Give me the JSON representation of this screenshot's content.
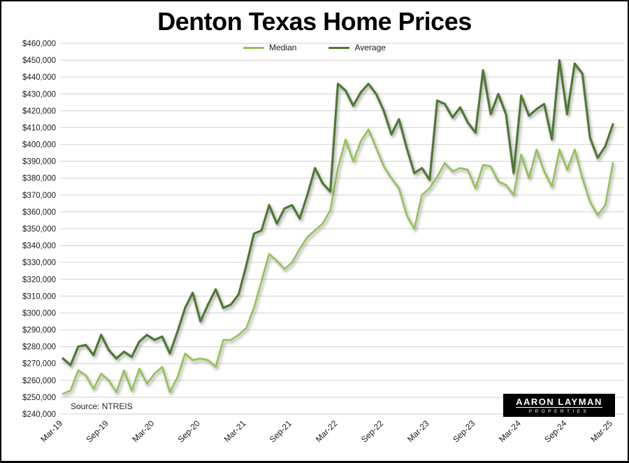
{
  "title": "Denton Texas Home Prices",
  "legend": {
    "items": [
      {
        "label": "Median",
        "color": "#93c353"
      },
      {
        "label": "Average",
        "color": "#4e7a30"
      }
    ]
  },
  "source_note": "Source: NTREIS",
  "logo": {
    "line1": "AARON LAYMAN",
    "line2": "PROPERTIES"
  },
  "colors": {
    "median_line": "#93c353",
    "average_line": "#4e7a30",
    "gridline": "#d9d9d9",
    "axis_text": "#1a1a1a"
  },
  "chart_data": {
    "type": "line",
    "title": "Denton Texas Home Prices",
    "x_frequency": "monthly",
    "x_start": "Mar-19",
    "x_end": "Mar-25",
    "n_points": 73,
    "x_ticks": [
      {
        "index": 0,
        "label": "Mar-19"
      },
      {
        "index": 6,
        "label": "Sep-19"
      },
      {
        "index": 12,
        "label": "Mar-20"
      },
      {
        "index": 18,
        "label": "Sep-20"
      },
      {
        "index": 24,
        "label": "Mar-21"
      },
      {
        "index": 30,
        "label": "Sep-21"
      },
      {
        "index": 36,
        "label": "Mar-22"
      },
      {
        "index": 42,
        "label": "Sep-22"
      },
      {
        "index": 48,
        "label": "Mar-23"
      },
      {
        "index": 54,
        "label": "Sep-23"
      },
      {
        "index": 60,
        "label": "Mar-24"
      },
      {
        "index": 66,
        "label": "Sep-24"
      },
      {
        "index": 72,
        "label": "Mar-25"
      }
    ],
    "ylim": [
      240000,
      460000
    ],
    "y_tick_step": 10000,
    "grid": true,
    "legend_position": "top-center",
    "series": [
      {
        "name": "Median",
        "color": "#93c353",
        "values": [
          252000,
          254000,
          266000,
          263000,
          255000,
          264000,
          260000,
          253000,
          266000,
          254000,
          267000,
          258000,
          264000,
          268000,
          253000,
          262000,
          276000,
          272000,
          273000,
          272000,
          268000,
          284000,
          284000,
          287000,
          291000,
          303000,
          319000,
          335000,
          331000,
          326000,
          330000,
          338000,
          345000,
          349000,
          353000,
          361000,
          386000,
          403000,
          390000,
          402000,
          409000,
          398000,
          387000,
          380000,
          374000,
          358000,
          350000,
          370000,
          374000,
          381000,
          389000,
          384000,
          386000,
          385000,
          374000,
          388000,
          387000,
          378000,
          376000,
          370000,
          394000,
          380000,
          397000,
          384000,
          375000,
          397000,
          385000,
          397000,
          380000,
          366000,
          358000,
          364000,
          389000
        ]
      },
      {
        "name": "Average",
        "color": "#4e7a30",
        "values": [
          273000,
          269000,
          280000,
          281000,
          275000,
          287000,
          278000,
          273000,
          277000,
          274000,
          283000,
          287000,
          284000,
          286000,
          276000,
          289000,
          303000,
          312000,
          295000,
          305000,
          314000,
          303000,
          305000,
          311000,
          328000,
          347000,
          349000,
          364000,
          353000,
          362000,
          364000,
          356000,
          370000,
          386000,
          377000,
          372000,
          436000,
          432000,
          423000,
          431000,
          436000,
          430000,
          420000,
          406000,
          415000,
          398000,
          383000,
          386000,
          379000,
          426000,
          424000,
          416000,
          422000,
          413000,
          407000,
          444000,
          418000,
          430000,
          418000,
          383000,
          429000,
          417000,
          421000,
          424000,
          403000,
          450000,
          418000,
          448000,
          442000,
          404000,
          392000,
          399000,
          412000
        ]
      }
    ]
  }
}
